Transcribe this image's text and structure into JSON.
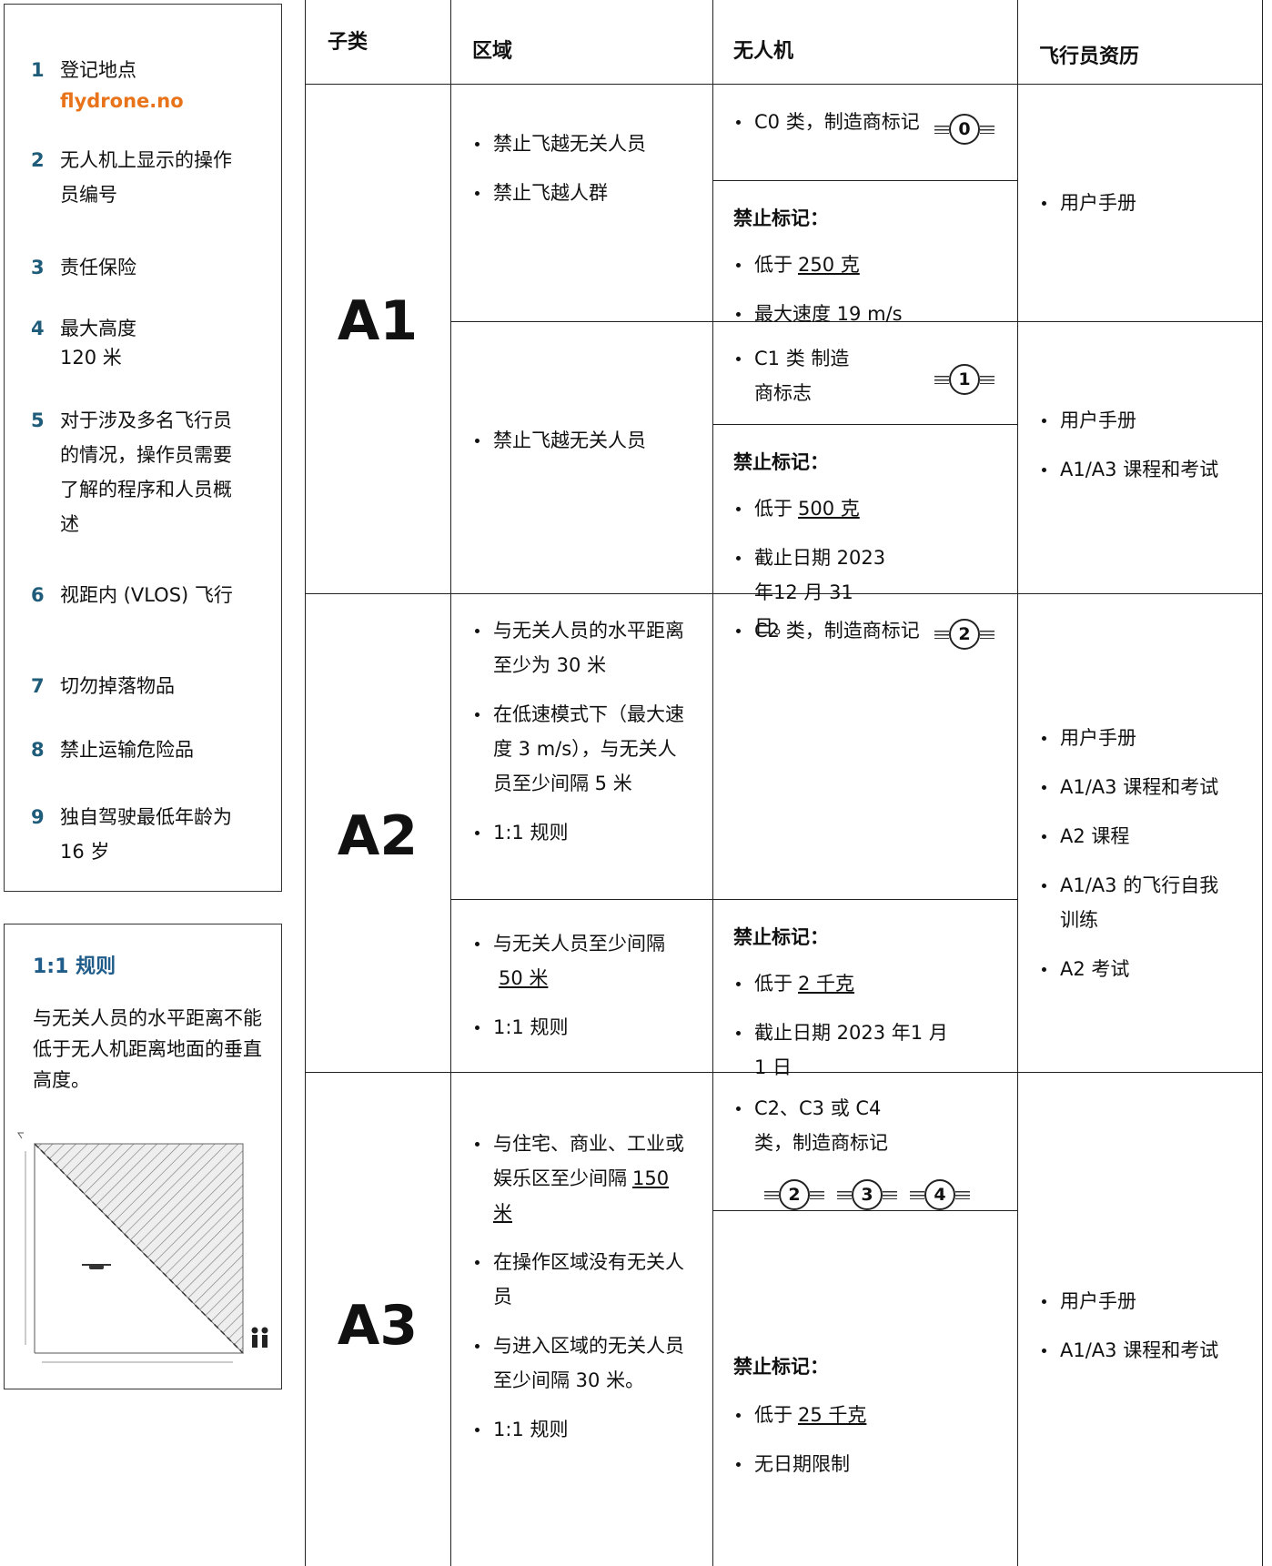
{
  "sidebar": {
    "items": [
      {
        "number": "1",
        "text": "登记地点",
        "link": "flydrone.no"
      },
      {
        "number": "2",
        "text": "无人机上显示的操作员编号"
      },
      {
        "number": "3",
        "text": "责任保险"
      },
      {
        "number": "4",
        "text": "最大高度",
        "detail": "120 米"
      },
      {
        "number": "5",
        "text": "对于涉及多名飞行员的情况，操作员需要了解的程序和人员概述"
      },
      {
        "number": "6",
        "text": "视距内 (VLOS) 飞行"
      },
      {
        "number": "7",
        "text": "切勿掉落物品"
      },
      {
        "number": "8",
        "text": "禁止运输危险品"
      },
      {
        "number": "9",
        "text": "独自驾驶最低年龄为 16 岁"
      }
    ]
  },
  "rule_box": {
    "title": "1:1 规则",
    "text": "与无关人员的水平距离不能低于无人机距离地面的垂直高度。"
  },
  "table": {
    "headers": [
      "子类",
      "区域",
      "无人机",
      "飞行员资历"
    ],
    "a1": {
      "subcategory": "A1",
      "part1": {
        "area": [
          "禁止飞越无关人员",
          "禁止飞越人群"
        ],
        "drone_class": "C0 类，制造商标记",
        "class_marks": [
          "0"
        ],
        "label_heading": "禁止标记：",
        "label_items": [
          {
            "text": "低于",
            "underlined": "250 克"
          },
          "最大速度 19 m/s"
        ],
        "pilot": [
          "用户手册"
        ]
      },
      "part2": {
        "area": [
          "禁止飞越无关人员"
        ],
        "drone_class": "C1 类 制造商标志",
        "class_marks": [
          "1"
        ],
        "label_heading": "禁止标记：",
        "label_items": [
          {
            "text": "低于",
            "underlined": "500 克"
          },
          "截止日期 2023 年12 月 31 日。"
        ],
        "pilot": [
          "用户手册",
          "A1/A3 课程和考试"
        ]
      }
    },
    "a2": {
      "subcategory": "A2",
      "part1": {
        "area": [
          "与无关人员的水平距离至少为 30 米",
          "在低速模式下（最大速度 3 m/s），与无关人员至少间隔 5 米",
          "1:1 规则"
        ],
        "drone_class": "C2 类，制造商标记",
        "class_marks": [
          "2"
        ]
      },
      "part2": {
        "area": [
          {
            "text": "与无关人员至少间隔",
            "underlined": "50 米"
          },
          "1:1 规则"
        ],
        "label_heading": "禁止标记：",
        "label_items": [
          {
            "text": "低于",
            "underlined": "2 千克"
          },
          "截止日期 2023 年1 月 1 日"
        ]
      },
      "pilot": [
        "用户手册",
        "A1/A3 课程和考试",
        "A2 课程",
        "A1/A3 的飞行自我训练",
        "A2 考试"
      ]
    },
    "a3": {
      "subcategory": "A3",
      "area": [
        {
          "text": "与住宅、商业、工业或娱乐区至少间隔",
          "underlined": "150 米"
        },
        "在操作区域没有无关人员",
        "与进入区域的无关人员至少间隔 30 米。",
        "1:1 规则"
      ],
      "drone_class": "C2、C3 或 C4 类，制造商标记",
      "class_marks": [
        "2",
        "3",
        "4"
      ],
      "label_heading": "禁止标记：",
      "label_items": [
        {
          "text": "低于",
          "underlined": "25 千克"
        },
        "无日期限制"
      ],
      "pilot": [
        "用户手册",
        "A1/A3 课程和考试"
      ]
    }
  }
}
